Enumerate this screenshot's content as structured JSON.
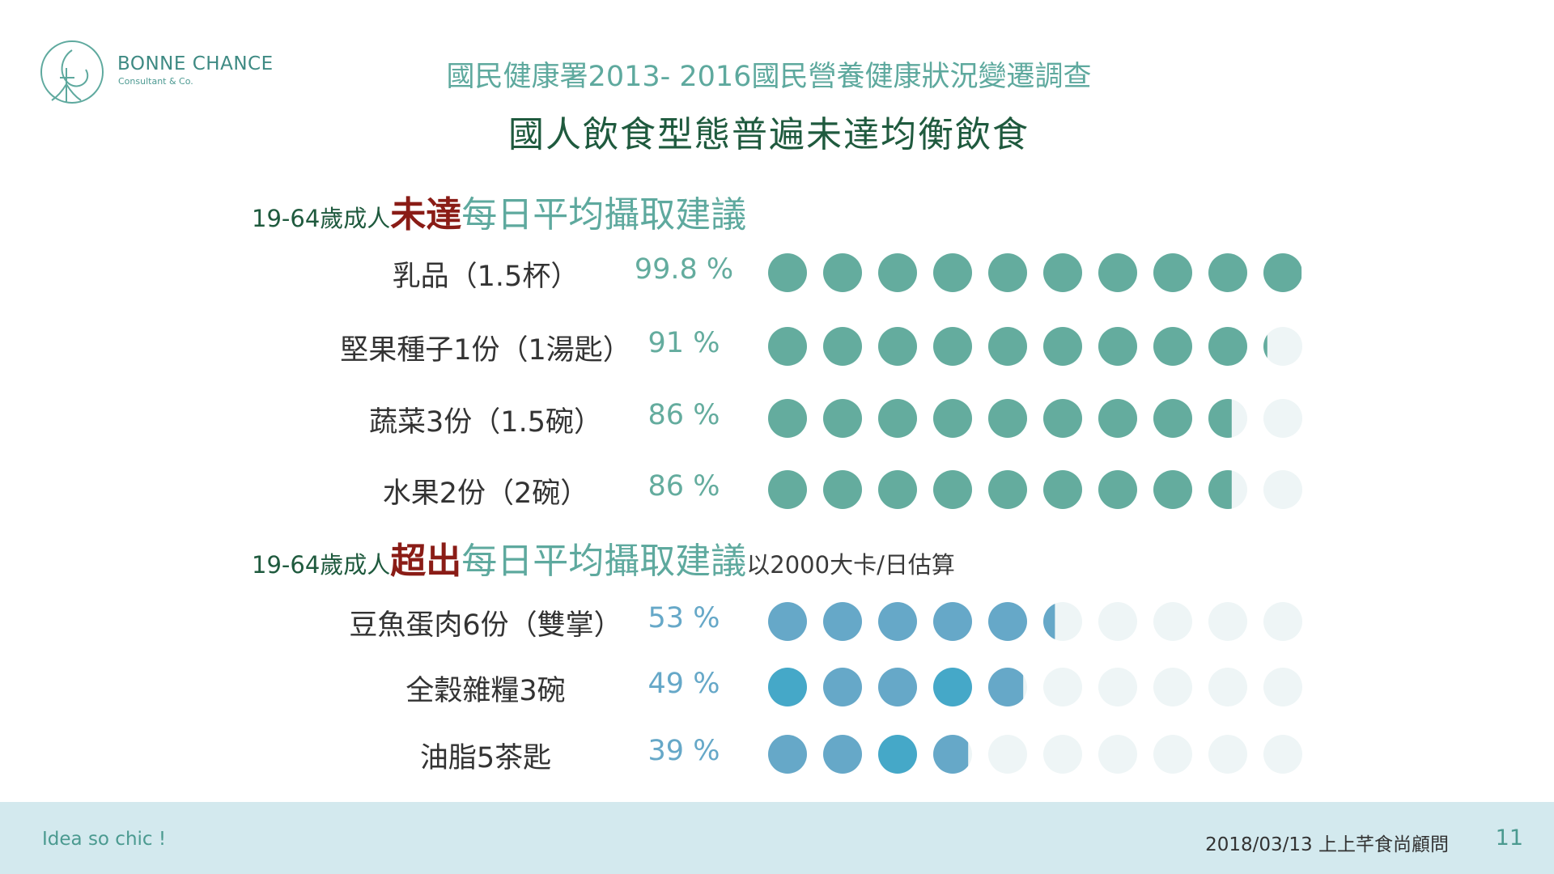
{
  "brand": {
    "name": "BONNE CHANCE",
    "subtitle": "Consultant & Co."
  },
  "header": {
    "survey_title": "國民健康署2013- 2016國民營養健康狀況變遷調查",
    "main_title": "國人飲食型態普遍未達均衡飲食"
  },
  "sections": [
    {
      "prefix": "19-64歲成人",
      "emphasis": "未達",
      "rest": "每日平均攝取建議",
      "note": ""
    },
    {
      "prefix": "19-64歲成人",
      "emphasis": "超出",
      "rest": "每日平均攝取建議",
      "note": "以2000大卡/日估算"
    }
  ],
  "colors": {
    "green": "#64ac9e",
    "blue": "#66a8c8",
    "blue_bright": "#45a8c8",
    "empty": "#eef5f6",
    "emphasis": "#8a1c16"
  },
  "chart_data": {
    "type": "pictogram",
    "dots_per_row": 10,
    "rows": [
      {
        "label": "乳品（1.5杯）",
        "percent_text": "99.8 %",
        "value": 99.8,
        "group": "below"
      },
      {
        "label": "堅果種子1份（1湯匙）",
        "percent_text": "91 %",
        "value": 91,
        "group": "below"
      },
      {
        "label": "蔬菜3份（1.5碗）",
        "percent_text": "86 %",
        "value": 86,
        "group": "below"
      },
      {
        "label": "水果2份（2碗）",
        "percent_text": "86 %",
        "value": 86,
        "group": "below"
      },
      {
        "label": "豆魚蛋肉6份（雙掌）",
        "percent_text": "53 %",
        "value": 53,
        "group": "above"
      },
      {
        "label": "全穀雜糧3碗",
        "percent_text": "49 %",
        "value": 49,
        "group": "above"
      },
      {
        "label": "油脂5茶匙",
        "percent_text": "39 %",
        "value": 39,
        "group": "above"
      }
    ]
  },
  "footer": {
    "tagline": "Idea so chic !",
    "date_company": "2018/03/13  上上芊食尚顧問",
    "page_number": "11"
  }
}
